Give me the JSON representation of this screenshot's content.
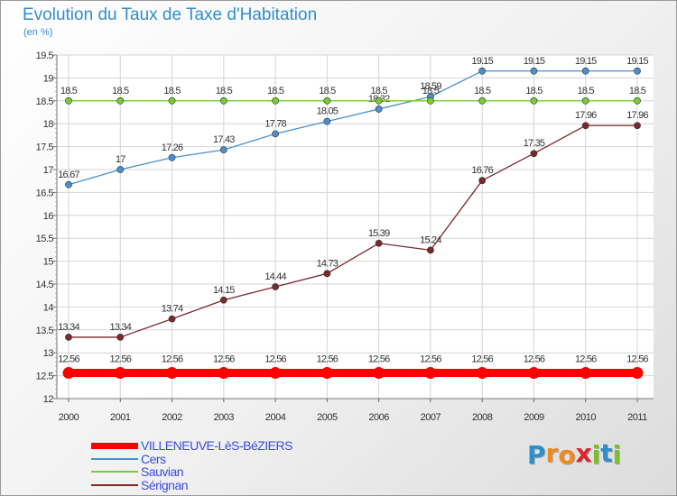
{
  "chart_data": {
    "type": "line",
    "title": "Evolution du Taux de Taxe d'Habitation",
    "subtitle": "(en %)",
    "x": [
      "2000",
      "2001",
      "2002",
      "2003",
      "2004",
      "2005",
      "2006",
      "2007",
      "2008",
      "2009",
      "2010",
      "2011"
    ],
    "ylim": [
      12,
      19.5
    ],
    "yticks": [
      "12",
      "12.5",
      "13",
      "13.5",
      "14",
      "14.5",
      "15",
      "15.5",
      "16",
      "16.5",
      "17",
      "17.5",
      "18",
      "18.5",
      "19",
      "19.5"
    ],
    "grid": true,
    "legend_position": "bottom-left",
    "series": [
      {
        "name": "VILLENEUVE-LèS-BéZIERS",
        "color": "#ff0000",
        "values": [
          12.56,
          12.56,
          12.56,
          12.56,
          12.56,
          12.56,
          12.56,
          12.56,
          12.56,
          12.56,
          12.56,
          12.56
        ],
        "labels": [
          "12.56",
          "12.56",
          "12.56",
          "12.56",
          "12.56",
          "12.56",
          "12.56",
          "12.56",
          "12.56",
          "12.56",
          "12.56",
          "12.56"
        ]
      },
      {
        "name": "Cers",
        "color": "#4a90d0",
        "values": [
          16.67,
          17,
          17.26,
          17.43,
          17.78,
          18.05,
          18.32,
          18.59,
          19.15,
          19.15,
          19.15,
          19.15
        ],
        "labels": [
          "16.67",
          "17",
          "17.26",
          "17.43",
          "17.78",
          "18.05",
          "18.32",
          "18.59",
          "19.15",
          "19.15",
          "19.15",
          "19.15"
        ]
      },
      {
        "name": "Sauvian",
        "color": "#77cc33",
        "values": [
          18.5,
          18.5,
          18.5,
          18.5,
          18.5,
          18.5,
          18.5,
          18.5,
          18.5,
          18.5,
          18.5,
          18.5
        ],
        "labels": [
          "18.5",
          "18.5",
          "18.5",
          "18.5",
          "18.5",
          "18.5",
          "18.5",
          "18.5",
          "18.5",
          "18.5",
          "18.5",
          "18.5"
        ]
      },
      {
        "name": "Sérignan",
        "color": "#7a2a2a",
        "values": [
          13.34,
          13.34,
          13.74,
          14.15,
          14.44,
          14.73,
          15.39,
          15.24,
          16.76,
          17.35,
          17.96,
          17.96
        ],
        "labels": [
          "13.34",
          "13.34",
          "13.74",
          "14.15",
          "14.44",
          "14.73",
          "15.39",
          "15.24",
          "16.76",
          "17.35",
          "17.96",
          "17.96"
        ]
      }
    ]
  },
  "brand": {
    "name": "Proxiti",
    "letters": [
      "P",
      "r",
      "o",
      "x",
      "i",
      "t",
      "i"
    ],
    "colors": [
      "#2e8fcc",
      "#f08a1c",
      "#f08a1c",
      "#d8262e",
      "#7bbf2a",
      "#2e8fcc",
      "#7bbf2a"
    ]
  }
}
